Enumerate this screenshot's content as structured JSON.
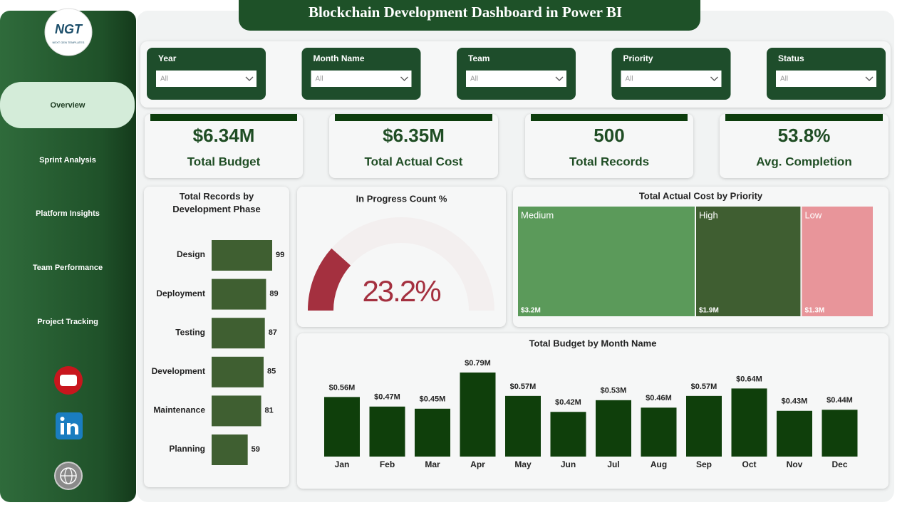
{
  "header": {
    "title": "Blockchain Development Dashboard in Power BI"
  },
  "logo": {
    "text": "NGT",
    "subtext": "NEXT GEN TEMPLATES"
  },
  "nav": {
    "items": [
      "Overview",
      "Sprint Analysis",
      "Platform Insights",
      "Team Performance",
      "Project Tracking"
    ],
    "selected": 0
  },
  "filters": [
    {
      "label": "Year",
      "value": "All"
    },
    {
      "label": "Month Name",
      "value": "All"
    },
    {
      "label": "Team",
      "value": "All"
    },
    {
      "label": "Priority",
      "value": "All"
    },
    {
      "label": "Status",
      "value": "All"
    }
  ],
  "kpis": [
    {
      "value": "$6.34M",
      "label": "Total Budget"
    },
    {
      "value": "$6.35M",
      "label": "Total Actual Cost"
    },
    {
      "value": "500",
      "label": "Total Records"
    },
    {
      "value": "53.8%",
      "label": "Avg. Completion"
    }
  ],
  "chart_data": [
    {
      "type": "barh",
      "title": "Total Records by Development Phase",
      "categories": [
        "Design",
        "Deployment",
        "Testing",
        "Development",
        "Maintenance",
        "Planning"
      ],
      "values": [
        99,
        89,
        87,
        85,
        81,
        59
      ],
      "color": "#3f5f31"
    },
    {
      "type": "gauge",
      "title": "In Progress Count %",
      "value": 23.2,
      "value_label": "23.2%",
      "range": [
        0,
        100
      ],
      "color": "#a4303f",
      "track_color": "#f3efef"
    },
    {
      "type": "treemap",
      "title": "Total Actual Cost by Priority",
      "categories": [
        "Medium",
        "High",
        "Low"
      ],
      "values": [
        3200000,
        1900000,
        1300000
      ],
      "value_labels": [
        "$3.2M",
        "$1.9M",
        "$1.3M"
      ],
      "colors": [
        "#5b9a5a",
        "#3f5e31",
        "#e8959a"
      ]
    },
    {
      "type": "bar",
      "title": "Total Budget by Month Name",
      "categories": [
        "Jan",
        "Feb",
        "Mar",
        "Apr",
        "May",
        "Jun",
        "Jul",
        "Aug",
        "Sep",
        "Oct",
        "Nov",
        "Dec"
      ],
      "values": [
        560000,
        470000,
        450000,
        790000,
        570000,
        420000,
        530000,
        460000,
        570000,
        640000,
        430000,
        440000
      ],
      "value_labels": [
        "$0.56M",
        "$0.47M",
        "$0.45M",
        "$0.79M",
        "$0.57M",
        "$0.42M",
        "$0.53M",
        "$0.46M",
        "$0.57M",
        "$0.64M",
        "$0.43M",
        "$0.44M"
      ],
      "color": "#0f3f0b"
    }
  ]
}
